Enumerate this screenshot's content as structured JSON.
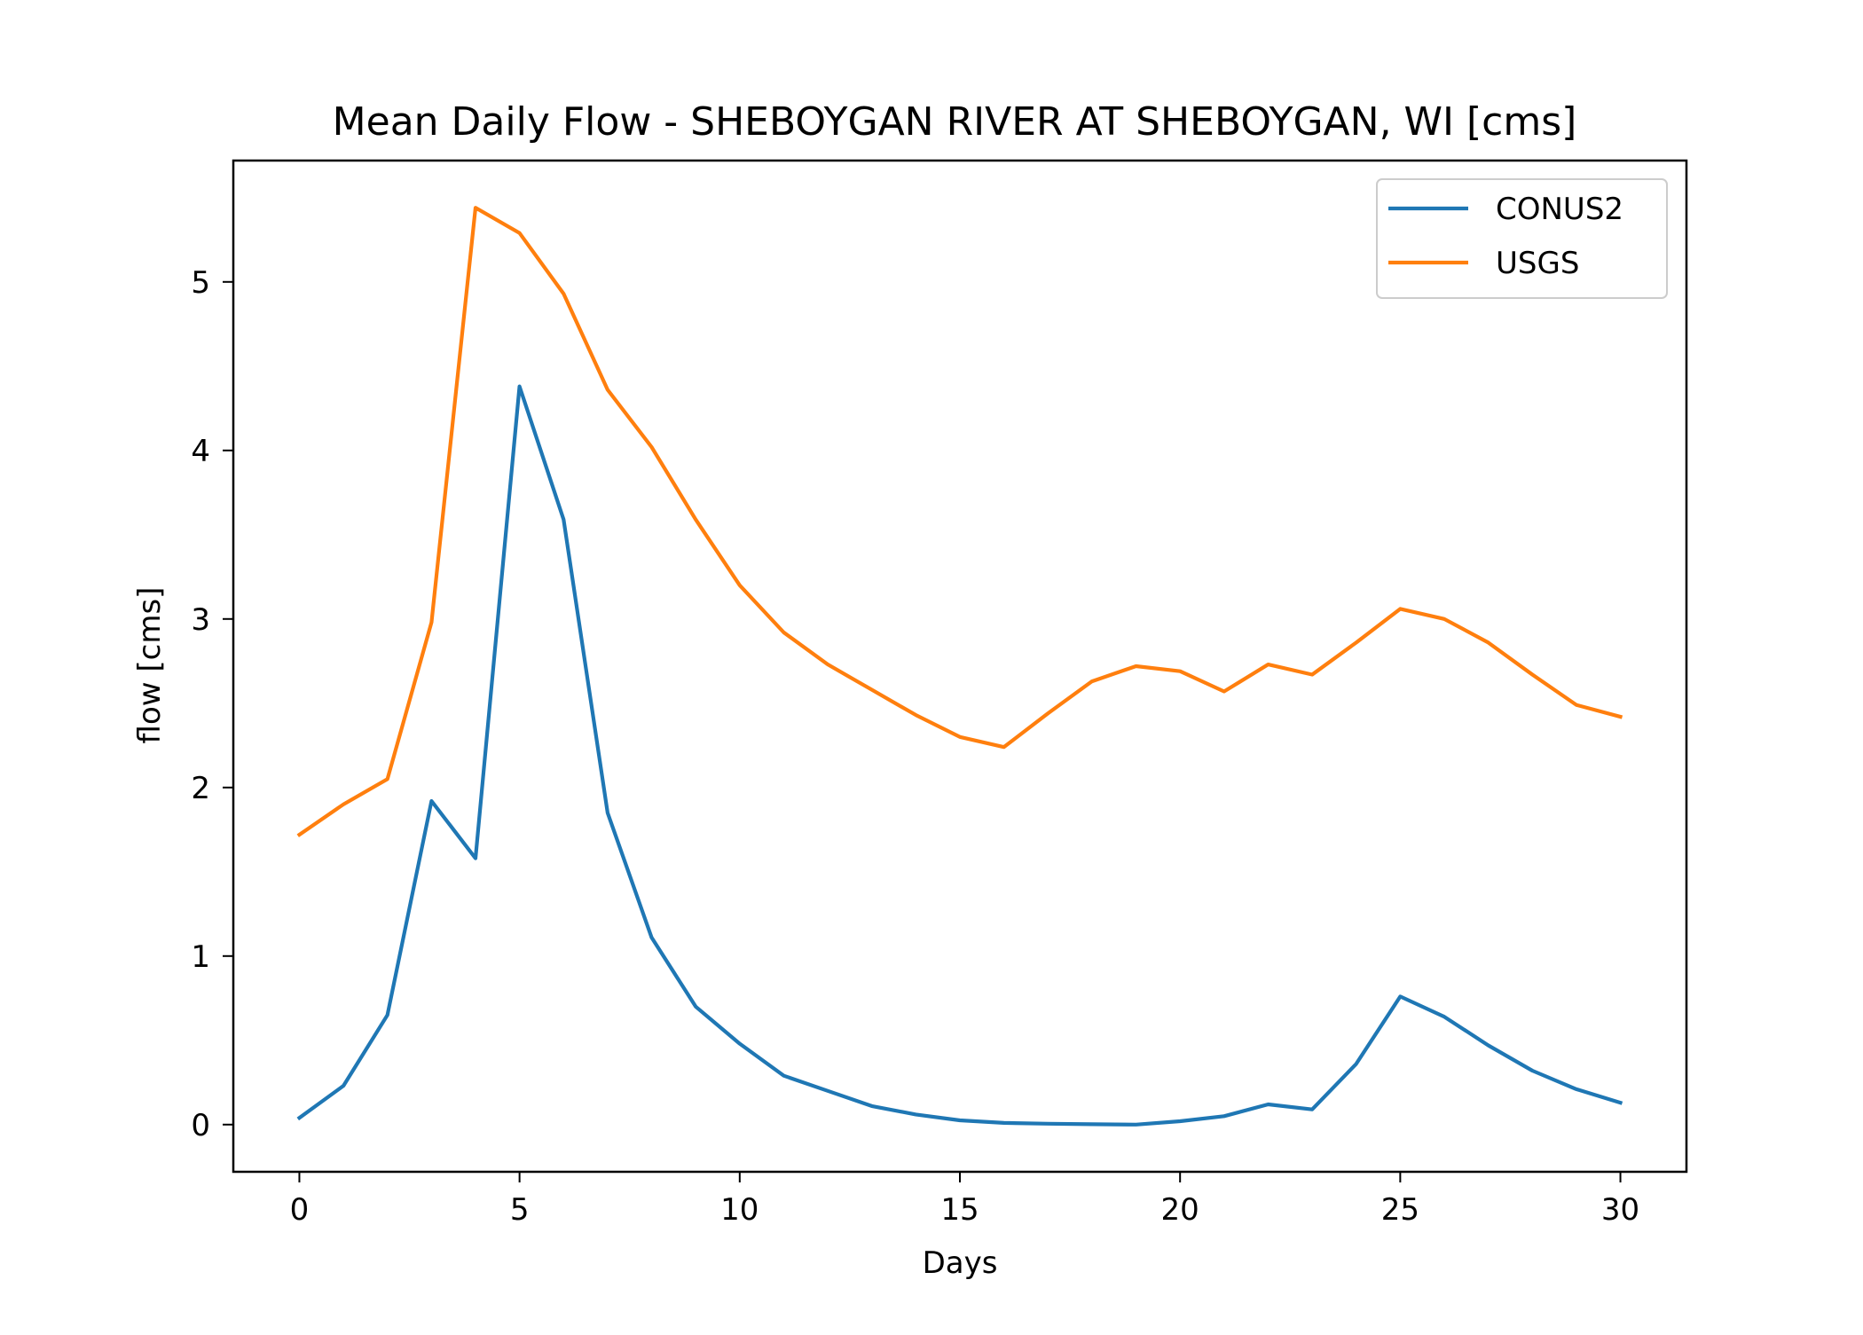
{
  "chart_data": {
    "type": "line",
    "title": "Mean Daily Flow - SHEBOYGAN RIVER AT SHEBOYGAN, WI [cms]",
    "xlabel": "Days",
    "ylabel": "flow [cms]",
    "xlim": [
      -1.5,
      31.5
    ],
    "ylim": [
      -0.28,
      5.72
    ],
    "xticks": [
      0,
      5,
      10,
      15,
      20,
      25,
      30
    ],
    "yticks": [
      0,
      1,
      2,
      3,
      4,
      5
    ],
    "grid": false,
    "legend_position": "top-right",
    "x": [
      0,
      1,
      2,
      3,
      4,
      5,
      6,
      7,
      8,
      9,
      10,
      11,
      12,
      13,
      14,
      15,
      16,
      17,
      18,
      19,
      20,
      21,
      22,
      23,
      24,
      25,
      26,
      27,
      28,
      29,
      30
    ],
    "series": [
      {
        "name": "CONUS2",
        "color": "#1f77b4",
        "values": [
          0.04,
          0.23,
          0.65,
          1.92,
          1.58,
          4.38,
          3.59,
          1.85,
          1.11,
          0.7,
          0.48,
          0.29,
          0.2,
          0.11,
          0.06,
          0.025,
          0.01,
          0.005,
          0.002,
          0.0,
          0.02,
          0.05,
          0.12,
          0.09,
          0.36,
          0.76,
          0.64,
          0.47,
          0.32,
          0.21,
          0.13
        ]
      },
      {
        "name": "USGS",
        "color": "#ff7f0e",
        "values": [
          1.72,
          1.9,
          2.05,
          2.98,
          5.44,
          5.29,
          4.93,
          4.36,
          4.02,
          3.59,
          3.2,
          2.92,
          2.73,
          2.58,
          2.43,
          2.3,
          2.24,
          2.44,
          2.63,
          2.72,
          2.69,
          2.57,
          2.73,
          2.67,
          2.86,
          3.06,
          3.0,
          2.86,
          2.67,
          2.49,
          2.42
        ]
      }
    ]
  }
}
